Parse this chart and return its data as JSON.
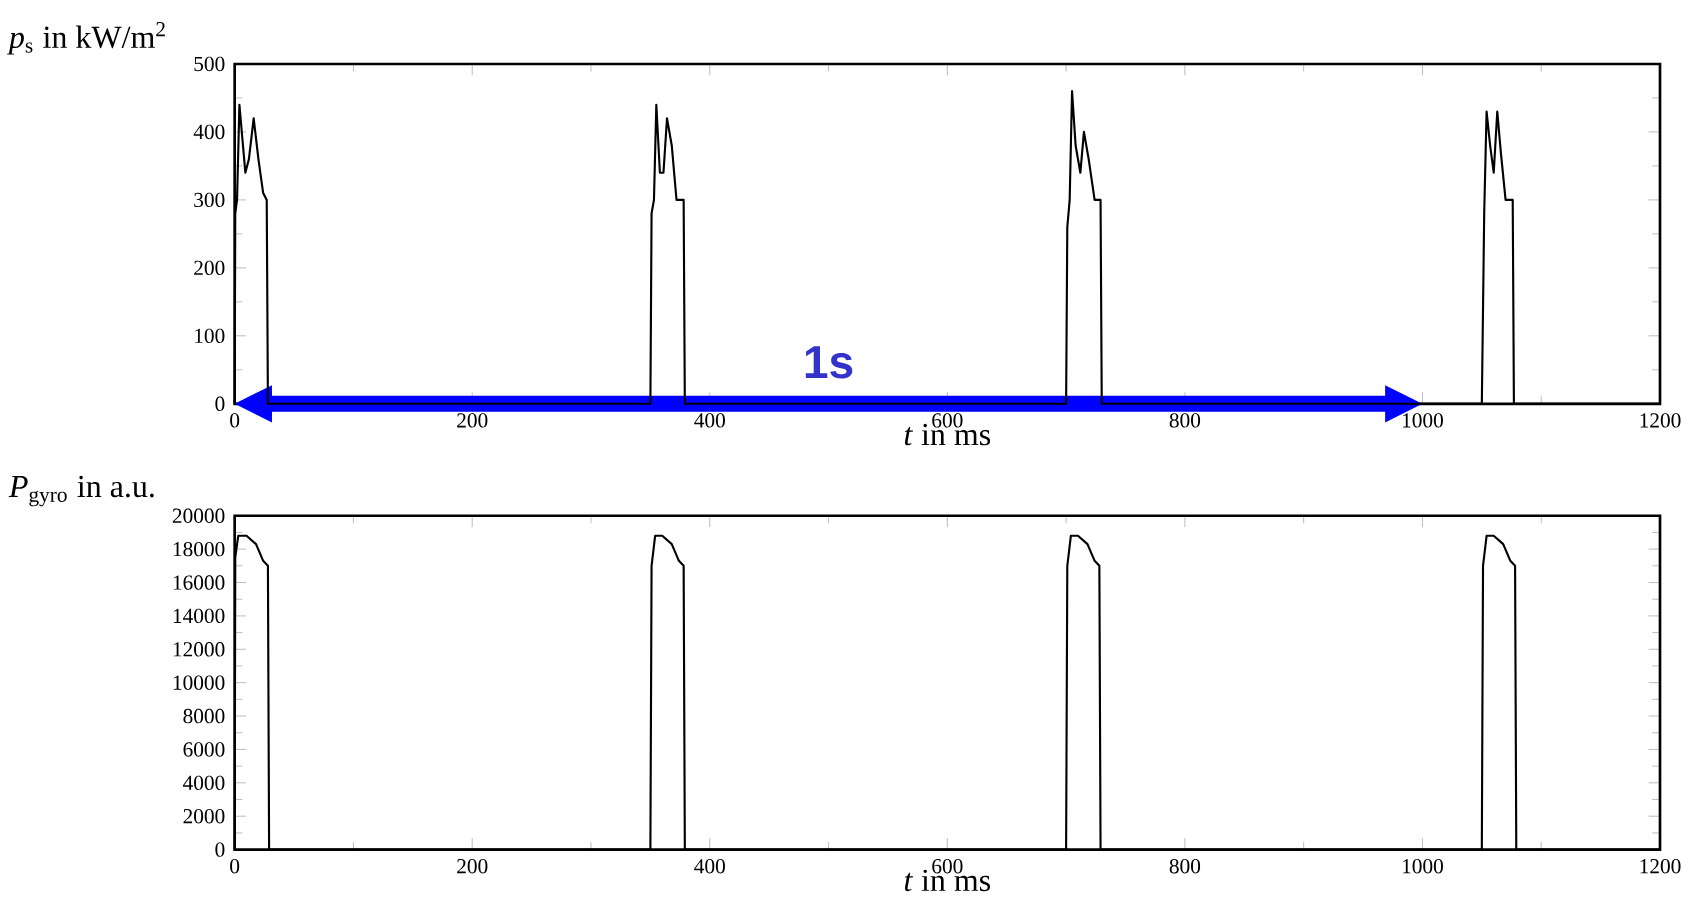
{
  "chart_data": [
    {
      "type": "line",
      "ylabel": "*p*$_{s}$ in kW/m$^{2}$",
      "xlabel": "*t* in ms",
      "xlim": [
        0,
        1200
      ],
      "xticks": [
        0,
        200,
        400,
        600,
        800,
        1000,
        1200
      ],
      "ylim": [
        0,
        500
      ],
      "yticks": [
        0,
        100,
        200,
        300,
        400,
        500
      ],
      "series": [
        {
          "color": "#000000",
          "x": [
            0,
            0.5,
            2,
            4,
            7,
            9,
            12,
            16,
            20,
            24,
            27,
            28,
            350,
            351,
            353,
            355,
            358,
            361,
            364,
            368,
            372,
            378,
            379,
            700,
            701,
            703,
            705,
            708,
            712,
            715,
            719,
            724,
            729,
            730,
            1050,
            1052,
            1054,
            1057,
            1060,
            1063,
            1066,
            1070,
            1076,
            1077,
            1200
          ],
          "values": [
            0,
            280,
            300,
            440,
            380,
            340,
            360,
            420,
            360,
            310,
            300,
            0,
            0,
            280,
            300,
            440,
            340,
            340,
            420,
            380,
            300,
            300,
            0,
            0,
            260,
            300,
            460,
            380,
            340,
            400,
            360,
            300,
            300,
            0,
            0,
            280,
            430,
            380,
            340,
            430,
            370,
            300,
            300,
            0,
            0
          ]
        }
      ],
      "annotations": [
        "1s"
      ]
    },
    {
      "type": "line",
      "ylabel": "*P*$_{gyro}$ in a.u.",
      "xlabel": "*t* in ms",
      "xlim": [
        0,
        1200
      ],
      "xticks": [
        0,
        200,
        400,
        600,
        800,
        1000,
        1200
      ],
      "ylim": [
        0,
        20000
      ],
      "yticks": [
        0,
        2000,
        4000,
        6000,
        8000,
        10000,
        12000,
        14000,
        16000,
        18000,
        20000
      ],
      "series": [
        {
          "color": "#000000",
          "x": [
            0,
            0.5,
            3,
            10,
            18,
            24,
            28,
            29,
            350,
            351,
            354,
            360,
            368,
            374,
            378,
            379,
            700,
            701,
            704,
            710,
            718,
            724,
            728,
            729,
            1050,
            1051,
            1054,
            1060,
            1068,
            1074,
            1078,
            1079,
            1200
          ],
          "values": [
            0,
            17500,
            18800,
            18800,
            18300,
            17300,
            17000,
            0,
            0,
            17000,
            18800,
            18800,
            18300,
            17300,
            17000,
            0,
            0,
            17000,
            18800,
            18800,
            18300,
            17300,
            17000,
            0,
            0,
            17000,
            18800,
            18800,
            18300,
            17300,
            17000,
            0,
            0
          ]
        }
      ]
    }
  ]
}
